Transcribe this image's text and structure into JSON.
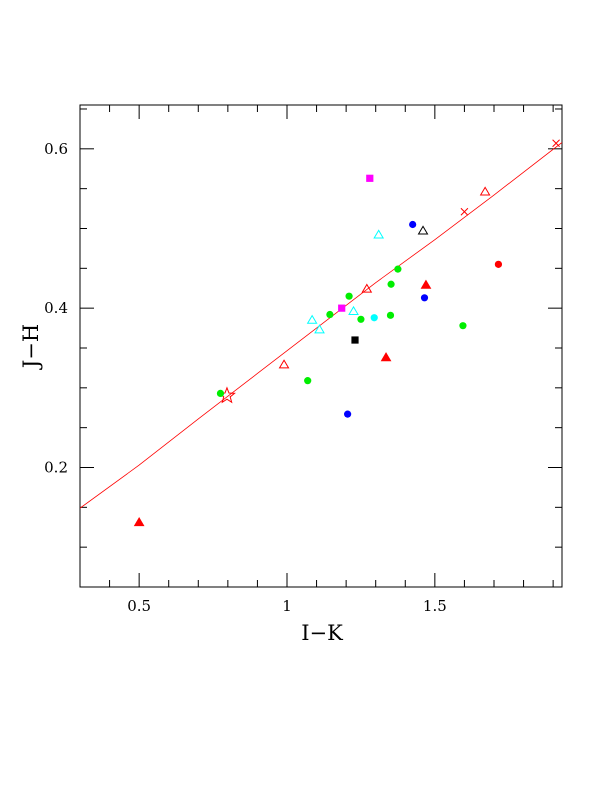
{
  "chart_data": {
    "type": "scatter",
    "xlabel": "I−K",
    "ylabel": "J−H",
    "xlim": [
      0.3,
      1.93
    ],
    "ylim": [
      0.05,
      0.655
    ],
    "x_ticks": [
      {
        "value": 0.5,
        "label": "0.5"
      },
      {
        "value": 1.0,
        "label": "1"
      },
      {
        "value": 1.5,
        "label": "1.5"
      }
    ],
    "y_ticks": [
      {
        "value": 0.2,
        "label": "0.2"
      },
      {
        "value": 0.4,
        "label": "0.4"
      },
      {
        "value": 0.6,
        "label": "0.6"
      }
    ],
    "x_minor_step": 0.1,
    "y_minor_step": 0.05,
    "grid": false,
    "line": {
      "color": "#ff0000",
      "points": [
        [
          0.3,
          0.149
        ],
        [
          0.5,
          0.203
        ],
        [
          0.7,
          0.261
        ],
        [
          0.9,
          0.318
        ],
        [
          1.1,
          0.375
        ],
        [
          1.3,
          0.432
        ],
        [
          1.5,
          0.486
        ],
        [
          1.7,
          0.542
        ],
        [
          1.93,
          0.608
        ]
      ],
      "markers": [
        {
          "x": 0.797,
          "y": 0.29,
          "shape": "star-open"
        },
        {
          "x": 1.6,
          "y": 0.521,
          "shape": "cross"
        },
        {
          "x": 1.67,
          "y": 0.546,
          "shape": "triangle-open"
        },
        {
          "x": 1.91,
          "y": 0.607,
          "shape": "cross"
        }
      ]
    },
    "colors": {
      "red": "#ff0000",
      "green": "#00ee00",
      "blue": "#0000ff",
      "cyan": "#00ffff",
      "magenta": "#ff00ff",
      "black": "#000000"
    },
    "points": [
      {
        "x": 0.5,
        "y": 0.131,
        "shape": "triangle-filled",
        "color": "red"
      },
      {
        "x": 0.775,
        "y": 0.293,
        "shape": "circle-filled",
        "color": "green"
      },
      {
        "x": 0.99,
        "y": 0.329,
        "shape": "triangle-open",
        "color": "red"
      },
      {
        "x": 1.07,
        "y": 0.309,
        "shape": "circle-filled",
        "color": "green"
      },
      {
        "x": 1.085,
        "y": 0.385,
        "shape": "triangle-open",
        "color": "cyan"
      },
      {
        "x": 1.11,
        "y": 0.373,
        "shape": "triangle-open",
        "color": "cyan"
      },
      {
        "x": 1.145,
        "y": 0.392,
        "shape": "circle-filled",
        "color": "green"
      },
      {
        "x": 1.185,
        "y": 0.4,
        "shape": "square-filled",
        "color": "magenta"
      },
      {
        "x": 1.205,
        "y": 0.267,
        "shape": "circle-filled",
        "color": "blue"
      },
      {
        "x": 1.21,
        "y": 0.415,
        "shape": "circle-filled",
        "color": "green"
      },
      {
        "x": 1.225,
        "y": 0.396,
        "shape": "triangle-open",
        "color": "cyan"
      },
      {
        "x": 1.23,
        "y": 0.36,
        "shape": "square-filled",
        "color": "black"
      },
      {
        "x": 1.25,
        "y": 0.386,
        "shape": "circle-filled",
        "color": "green"
      },
      {
        "x": 1.27,
        "y": 0.424,
        "shape": "triangle-open",
        "color": "red"
      },
      {
        "x": 1.28,
        "y": 0.563,
        "shape": "square-filled",
        "color": "magenta"
      },
      {
        "x": 1.295,
        "y": 0.388,
        "shape": "circle-filled",
        "color": "cyan"
      },
      {
        "x": 1.31,
        "y": 0.492,
        "shape": "triangle-open",
        "color": "cyan"
      },
      {
        "x": 1.335,
        "y": 0.338,
        "shape": "triangle-filled",
        "color": "red"
      },
      {
        "x": 1.35,
        "y": 0.391,
        "shape": "circle-filled",
        "color": "green"
      },
      {
        "x": 1.352,
        "y": 0.43,
        "shape": "circle-filled",
        "color": "green"
      },
      {
        "x": 1.375,
        "y": 0.449,
        "shape": "circle-filled",
        "color": "green"
      },
      {
        "x": 1.425,
        "y": 0.505,
        "shape": "circle-filled",
        "color": "blue"
      },
      {
        "x": 1.46,
        "y": 0.497,
        "shape": "triangle-open",
        "color": "black"
      },
      {
        "x": 1.465,
        "y": 0.413,
        "shape": "circle-filled",
        "color": "blue"
      },
      {
        "x": 1.47,
        "y": 0.429,
        "shape": "triangle-filled",
        "color": "red"
      },
      {
        "x": 1.595,
        "y": 0.378,
        "shape": "circle-filled",
        "color": "green"
      },
      {
        "x": 1.715,
        "y": 0.455,
        "shape": "circle-filled",
        "color": "red"
      }
    ]
  }
}
